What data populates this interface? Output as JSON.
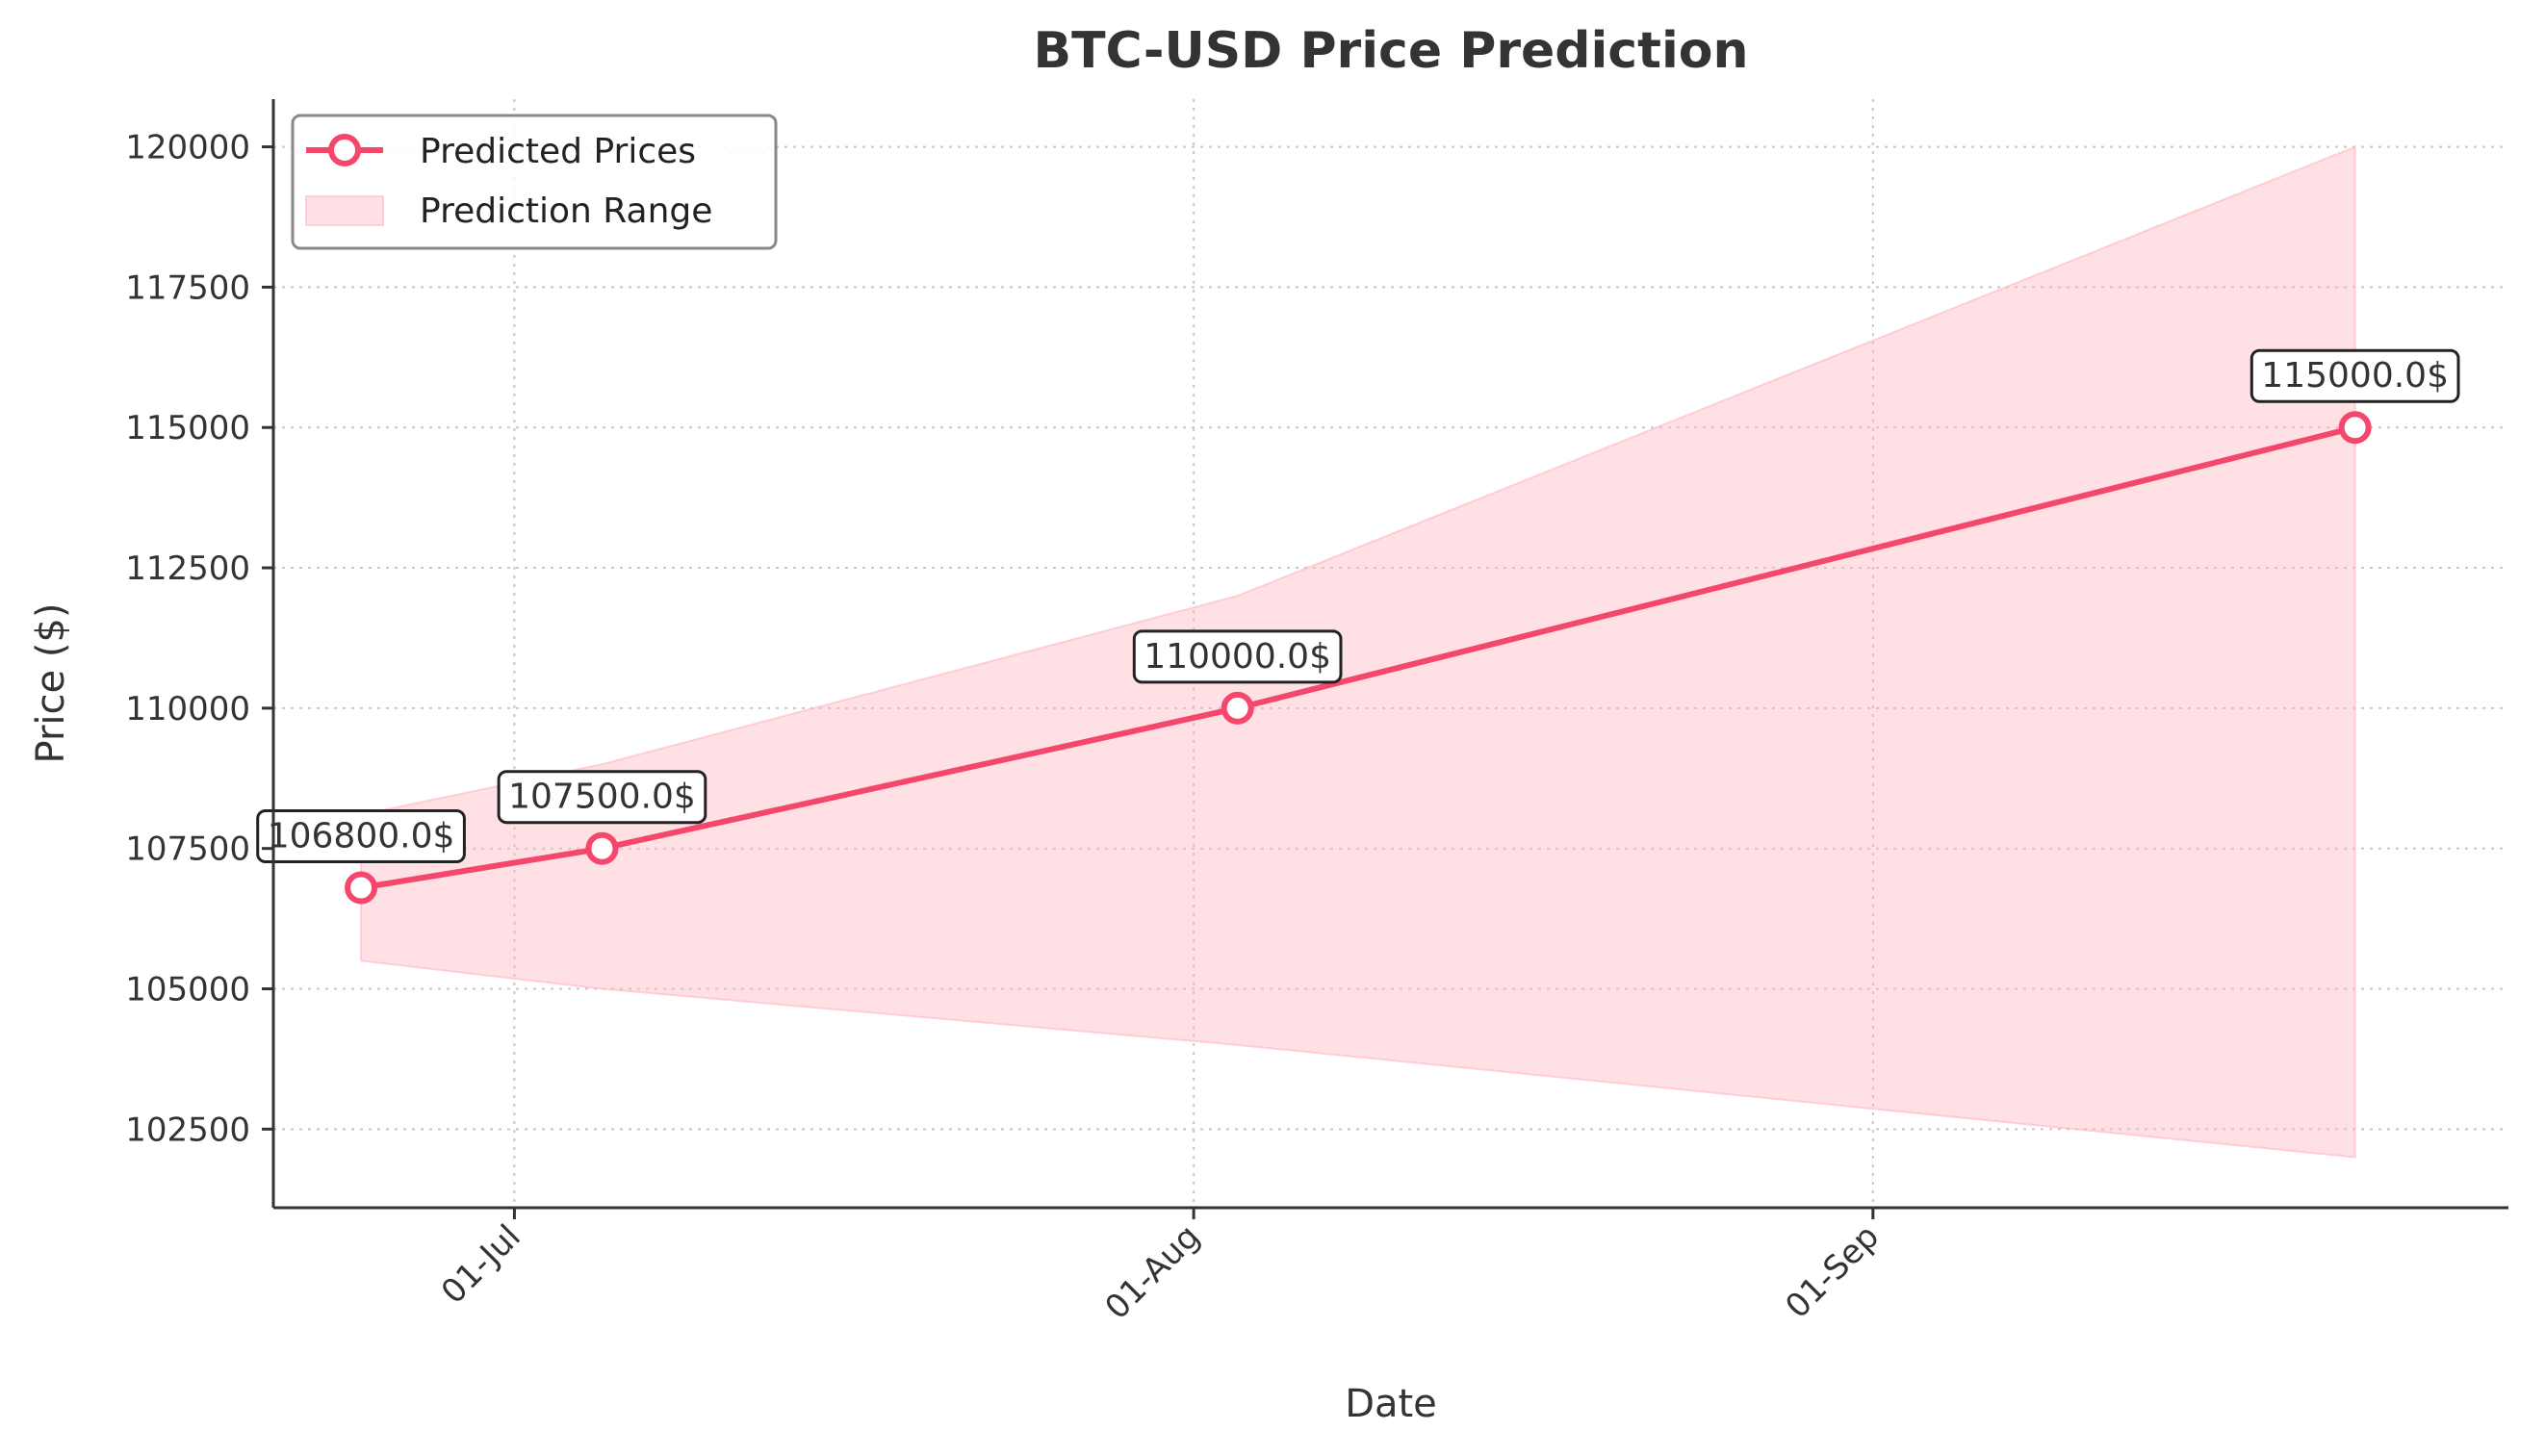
{
  "chart_data": {
    "type": "line",
    "title": "BTC-USD Price Prediction",
    "xlabel": "Date",
    "ylabel": "Price ($)",
    "x_type": "date",
    "x": [
      "2024-06-24",
      "2024-07-05",
      "2024-08-03",
      "2024-09-23"
    ],
    "xlim": [
      "2024-06-20",
      "2024-09-30"
    ],
    "ylim": [
      101100,
      120850
    ],
    "x_ticks": [
      {
        "date": "2024-07-01",
        "label": "01-Jul"
      },
      {
        "date": "2024-08-01",
        "label": "01-Aug"
      },
      {
        "date": "2024-09-01",
        "label": "01-Sep"
      }
    ],
    "y_ticks": [
      102500,
      105000,
      107500,
      110000,
      112500,
      115000,
      117500,
      120000
    ],
    "grid": true,
    "legend": {
      "position": "top-left",
      "predicted_label": "Predicted Prices",
      "range_label": "Prediction Range"
    },
    "series": [
      {
        "name": "Predicted Prices",
        "color": "#f4476b",
        "values": [
          106800,
          107500,
          110000,
          115000
        ]
      }
    ],
    "range": {
      "name": "Prediction Range",
      "color": "#ffb6c1",
      "low": [
        105500,
        105000,
        104000,
        102000
      ],
      "high": [
        108100,
        109000,
        112000,
        120000
      ]
    },
    "annotations": [
      "106800.0$",
      "107500.0$",
      "110000.0$",
      "115000.0$"
    ]
  }
}
